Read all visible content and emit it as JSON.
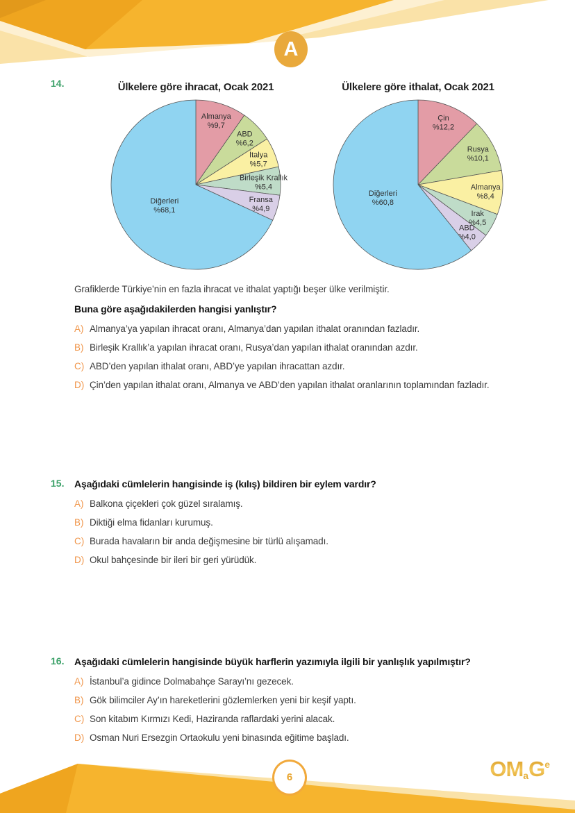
{
  "page": {
    "section_label": "A",
    "page_number": "6",
    "brand": {
      "om": "OM",
      "a": "a",
      "g": "G",
      "e": "e"
    }
  },
  "chart_data": [
    {
      "type": "pie",
      "title": "Ülkelere göre ihracat, Ocak 2021",
      "start_angle": "12-oclock",
      "direction": "clockwise",
      "slices": [
        {
          "label": "Almanya",
          "value": 9.7,
          "value_text": "%9,7",
          "color": "#e39ca6"
        },
        {
          "label": "ABD",
          "value": 6.2,
          "value_text": "%6,2",
          "color": "#c9db9b"
        },
        {
          "label": "İtalya",
          "value": 5.7,
          "value_text": "%5,7",
          "color": "#faf0a3"
        },
        {
          "label": "Birleşik Krallık",
          "value": 5.4,
          "value_text": "%5,4",
          "color": "#bfdcc8"
        },
        {
          "label": "Fransa",
          "value": 4.9,
          "value_text": "%4,9",
          "color": "#d9cfe7"
        },
        {
          "label": "Diğerleri",
          "value": 68.1,
          "value_text": "%68,1",
          "color": "#90d4f1"
        }
      ]
    },
    {
      "type": "pie",
      "title": "Ülkelere göre ithalat, Ocak 2021",
      "start_angle": "12-oclock",
      "direction": "clockwise",
      "slices": [
        {
          "label": "Çin",
          "value": 12.2,
          "value_text": "%12,2",
          "color": "#e39ca6"
        },
        {
          "label": "Rusya",
          "value": 10.1,
          "value_text": "%10,1",
          "color": "#c9db9b"
        },
        {
          "label": "Almanya",
          "value": 8.4,
          "value_text": "%8,4",
          "color": "#faf0a3"
        },
        {
          "label": "Irak",
          "value": 4.5,
          "value_text": "%4,5",
          "color": "#bfdcc8"
        },
        {
          "label": "ABD",
          "value": 4.0,
          "value_text": "%4,0",
          "color": "#d9cfe7"
        },
        {
          "label": "Diğerleri",
          "value": 60.8,
          "value_text": "%60,8",
          "color": "#90d4f1"
        }
      ]
    }
  ],
  "questions": [
    {
      "number": "14.",
      "intro": "Grafiklerde Türkiye’nin en fazla ihracat ve ithalat yaptığı beşer ülke verilmiştir.",
      "stem": "Buna göre aşağıdakilerden hangisi yanlıştır?",
      "options": [
        {
          "letter": "A)",
          "text": "Almanya’ya yapılan ihracat oranı, Almanya’dan yapılan ithalat oranından fazladır."
        },
        {
          "letter": "B)",
          "text": "Birleşik Krallık’a yapılan ihracat oranı, Rusya’dan yapılan ithalat oranından azdır."
        },
        {
          "letter": "C)",
          "text": "ABD’den yapılan ithalat oranı, ABD’ye yapılan ihracattan azdır."
        },
        {
          "letter": "D)",
          "text": "Çin’den yapılan ithalat oranı, Almanya ve ABD’den yapılan ithalat oranlarının toplamından fazladır."
        }
      ]
    },
    {
      "number": "15.",
      "stem": "Aşağıdaki cümlelerin hangisinde iş (kılış) bildiren bir eylem vardır?",
      "options": [
        {
          "letter": "A)",
          "text": "Balkona çiçekleri çok güzel sıralamış."
        },
        {
          "letter": "B)",
          "text": "Diktiği elma fidanları kurumuş."
        },
        {
          "letter": "C)",
          "text": "Burada havaların bir anda değişmesine bir türlü alışamadı."
        },
        {
          "letter": "D)",
          "text": "Okul bahçesinde bir ileri bir geri yürüdük."
        }
      ]
    },
    {
      "number": "16.",
      "stem": "Aşağıdaki cümlelerin hangisinde büyük harflerin yazımıyla ilgili bir yanlışlık yapılmıştır?",
      "options": [
        {
          "letter": "A)",
          "text": "İstanbul’a gidince Dolmabahçe Sarayı’nı gezecek."
        },
        {
          "letter": "B)",
          "text": "Gök bilimciler Ay’ın hareketlerini gözlemlerken yeni bir keşif yaptı."
        },
        {
          "letter": "C)",
          "text": "Son kitabım Kırmızı Kedi, Haziranda raflardaki yerini alacak."
        },
        {
          "letter": "D)",
          "text": "Osman Nuri Ersezgin Ortaokulu yeni binasında eğitime başladı."
        }
      ]
    }
  ],
  "colors": {
    "question_number_green": "#3ca169",
    "option_letter_orange": "#f0964b",
    "banner_gold": "#f6b42e",
    "banner_gold_dark": "#efa51f",
    "banner_gold_darkest": "#e2991b",
    "banner_cream": "#fae2a8",
    "banner_pale": "#fdf0d2",
    "badge_gold": "#e9a93c",
    "pie_outline": "#555555"
  }
}
